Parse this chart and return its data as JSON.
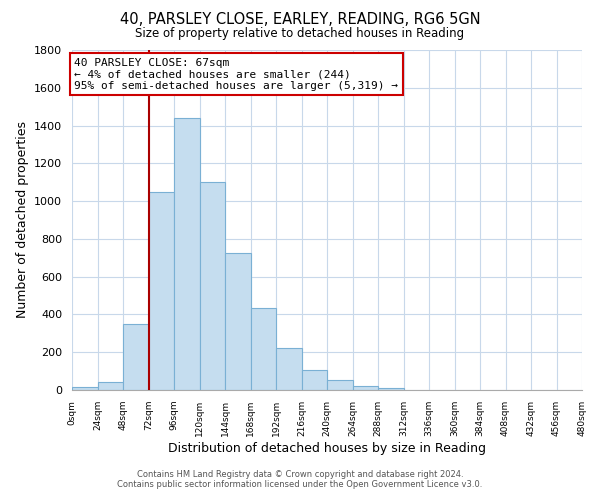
{
  "title": "40, PARSLEY CLOSE, EARLEY, READING, RG6 5GN",
  "subtitle": "Size of property relative to detached houses in Reading",
  "xlabel": "Distribution of detached houses by size in Reading",
  "ylabel": "Number of detached properties",
  "bar_color": "#c5ddef",
  "bar_edge_color": "#7ab0d4",
  "bin_edges": [
    0,
    24,
    48,
    72,
    96,
    120,
    144,
    168,
    192,
    216,
    240,
    264,
    288,
    312,
    336,
    360,
    384,
    408,
    432,
    456,
    480
  ],
  "bin_counts": [
    15,
    40,
    350,
    1050,
    1440,
    1100,
    725,
    435,
    220,
    105,
    55,
    20,
    10,
    0,
    0,
    0,
    0,
    0,
    0,
    0
  ],
  "x_tick_labels": [
    "0sqm",
    "24sqm",
    "48sqm",
    "72sqm",
    "96sqm",
    "120sqm",
    "144sqm",
    "168sqm",
    "192sqm",
    "216sqm",
    "240sqm",
    "264sqm",
    "288sqm",
    "312sqm",
    "336sqm",
    "360sqm",
    "384sqm",
    "408sqm",
    "432sqm",
    "456sqm",
    "480sqm"
  ],
  "ylim": [
    0,
    1800
  ],
  "yticks": [
    0,
    200,
    400,
    600,
    800,
    1000,
    1200,
    1400,
    1600,
    1800
  ],
  "property_line_x": 72,
  "property_line_color": "#aa0000",
  "annotation_title": "40 PARSLEY CLOSE: 67sqm",
  "annotation_line1": "← 4% of detached houses are smaller (244)",
  "annotation_line2": "95% of semi-detached houses are larger (5,319) →",
  "annotation_box_color": "#ffffff",
  "annotation_border_color": "#cc0000",
  "footer_line1": "Contains HM Land Registry data © Crown copyright and database right 2024.",
  "footer_line2": "Contains public sector information licensed under the Open Government Licence v3.0.",
  "background_color": "#ffffff",
  "grid_color": "#c8d8ea"
}
